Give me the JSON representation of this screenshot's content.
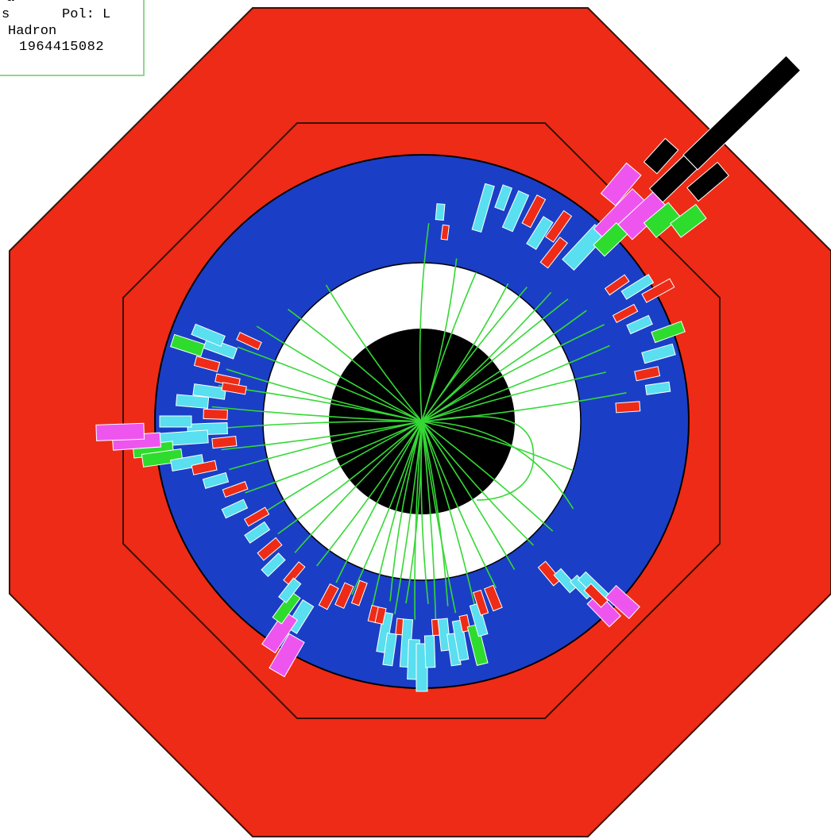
{
  "info_box": {
    "line1": "a",
    "line2_left": "s",
    "line2_right": "Pol: L",
    "line3": "Hadron",
    "line4": "1964415082"
  },
  "colors": {
    "background": "#ffffff",
    "outer_octagon": "#ee2b16",
    "octagon_outline": "#3a1208",
    "barrel": "#1a3fc6",
    "white_ring": "#ffffff",
    "core": "#000000",
    "track": "#35d835",
    "hit_red": "#ee2b16",
    "hit_cyan": "#59dfef",
    "hit_green": "#2edc2e",
    "hit_magenta": "#ee55ee",
    "hit_black": "#000000",
    "info_border": "#8fd78f"
  }
}
